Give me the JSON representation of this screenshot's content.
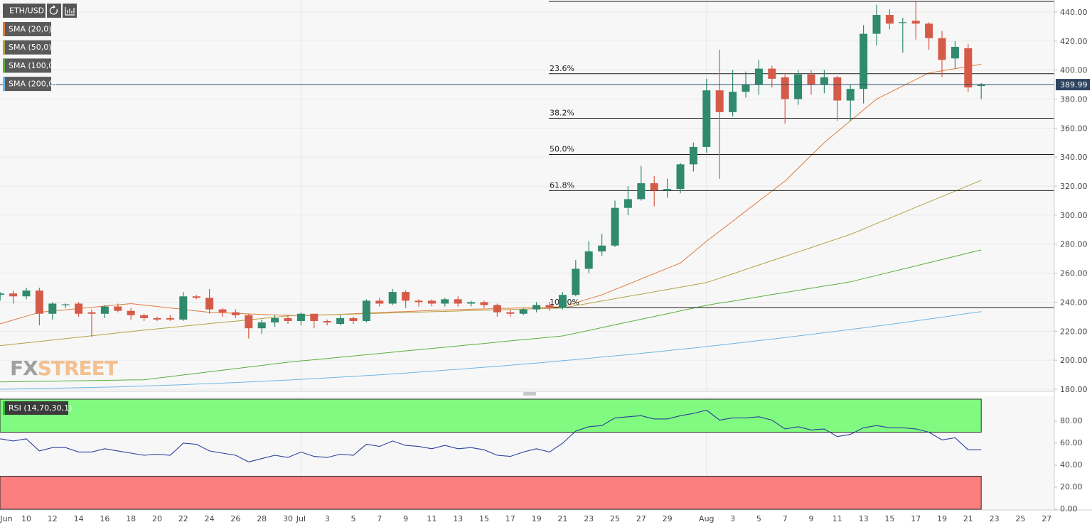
{
  "chart_data": [
    {
      "type": "candlestick",
      "title": "ETH/USD",
      "categories": [
        "Jun",
        null,
        "10",
        null,
        "12",
        null,
        "14",
        null,
        "16",
        null,
        "18",
        null,
        "20",
        null,
        "22",
        null,
        "24",
        null,
        "26",
        null,
        "28",
        null,
        "30",
        "Jul",
        null,
        "3",
        null,
        "5",
        null,
        "7",
        null,
        "9",
        null,
        "11",
        null,
        "13",
        null,
        "15",
        null,
        "17",
        null,
        "19",
        null,
        "21",
        null,
        "23",
        null,
        "25",
        null,
        "27",
        null,
        "29",
        null,
        null,
        "Aug",
        null,
        "3",
        null,
        "5",
        null,
        "7",
        null,
        "9",
        null,
        "11",
        null,
        "13",
        null,
        "15",
        null,
        "17",
        null,
        "19",
        null,
        "21",
        null,
        "23",
        null,
        "25",
        null,
        "27"
      ],
      "open": [
        245,
        246,
        244,
        248,
        232,
        238,
        239,
        233,
        232,
        237,
        234,
        231,
        229,
        229,
        228,
        244,
        243,
        235,
        233,
        231,
        222,
        226,
        229,
        227,
        232,
        227,
        225,
        229,
        227,
        241,
        239,
        247,
        241,
        241,
        239,
        242,
        239,
        240,
        238,
        233,
        232,
        235,
        238,
        236,
        245,
        263,
        275,
        279,
        305,
        311,
        322,
        317,
        318,
        335,
        347,
        386,
        371,
        385,
        390,
        401,
        395,
        380,
        397,
        390,
        395,
        379,
        387,
        425,
        438,
        433,
        434,
        432,
        422,
        408,
        415,
        389,
        null,
        null,
        null,
        null,
        null
      ],
      "high": [
        247,
        248,
        250,
        250,
        240,
        239,
        240,
        235,
        238,
        239,
        236,
        232,
        230,
        231,
        247,
        245,
        249,
        236,
        235,
        232,
        228,
        231,
        231,
        233,
        232,
        228,
        231,
        230,
        242,
        243,
        249,
        248,
        242,
        242,
        243,
        244,
        241,
        241,
        239,
        235,
        236,
        240,
        240,
        247,
        269,
        282,
        287,
        310,
        320,
        334,
        327,
        325,
        336,
        350,
        394,
        414,
        400,
        399,
        407,
        403,
        398,
        400,
        400,
        400,
        396,
        390,
        431,
        445,
        442,
        436,
        447,
        433,
        427,
        420,
        418,
        391,
        null,
        null,
        null,
        null,
        null
      ],
      "low": [
        241,
        239,
        242,
        224,
        228,
        236,
        230,
        216,
        229,
        233,
        228,
        227,
        227,
        227,
        227,
        242,
        232,
        230,
        229,
        215,
        218,
        223,
        225,
        224,
        222,
        224,
        224,
        225,
        226,
        237,
        238,
        236,
        237,
        237,
        237,
        237,
        237,
        236,
        230,
        230,
        231,
        233,
        234,
        235,
        244,
        260,
        272,
        278,
        300,
        310,
        306,
        312,
        315,
        330,
        343,
        325,
        368,
        381,
        383,
        388,
        363,
        376,
        383,
        384,
        365,
        365,
        377,
        417,
        428,
        412,
        421,
        414,
        395,
        401,
        385,
        380,
        null,
        null,
        null,
        null,
        null
      ],
      "close": [
        246,
        244,
        248,
        232,
        239,
        238.5,
        232,
        232,
        237,
        234,
        231,
        229,
        228,
        228,
        244,
        243,
        235,
        233,
        231,
        222,
        226,
        229,
        227,
        232,
        227,
        226,
        229,
        227,
        241,
        239,
        247,
        241,
        240,
        239,
        242,
        239,
        240,
        238,
        233,
        232,
        235,
        238,
        236,
        245,
        263,
        275,
        279,
        305,
        311,
        322,
        317,
        318,
        335,
        347,
        386,
        371,
        385,
        390,
        401,
        394,
        380,
        397,
        390,
        395,
        379,
        387,
        425,
        438,
        432,
        433,
        432,
        422,
        407,
        416,
        388,
        389.99,
        null,
        null,
        null,
        null,
        null
      ],
      "up_color": "#2f8a6e",
      "down_color": "#d65a48",
      "overlays": [
        {
          "name": "SMA (20,0)",
          "color": "#e07a3a",
          "values": [
            225,
            227.7,
            230.3,
            233,
            233.9,
            234.7,
            235.6,
            236.4,
            237.3,
            238.1,
            239,
            238,
            237,
            236,
            235,
            234,
            233,
            232.6,
            232.3,
            231.9,
            231.6,
            231.2,
            230.9,
            230.5,
            230.9,
            231.3,
            231.6,
            232,
            232.4,
            232.8,
            233.2,
            233.5,
            233.9,
            234.3,
            234.6,
            234.8,
            235.1,
            235.3,
            235.6,
            235.8,
            236.1,
            236.3,
            236.6,
            236.8,
            239.5,
            242.3,
            245,
            248.7,
            252.3,
            256,
            259.7,
            263.3,
            267,
            274.5,
            282,
            288.9,
            295.8,
            302.8,
            309.7,
            316.6,
            323.5,
            332.3,
            341.2,
            350,
            357.5,
            365,
            372.5,
            380,
            384.5,
            389,
            393.5,
            398,
            399.5,
            401,
            402.5,
            404,
            null,
            null,
            null,
            null,
            null
          ]
        },
        {
          "name": "SMA (50,0)",
          "color": "#b3a244",
          "values": [
            210,
            211,
            211.9,
            212.9,
            213.9,
            214.9,
            215.8,
            216.8,
            217.8,
            218.8,
            219.7,
            220.7,
            221.6,
            222.5,
            223.4,
            224.3,
            225.2,
            226.1,
            226.9,
            227.8,
            228.7,
            229.6,
            230.5,
            230.8,
            231,
            231.3,
            231.5,
            231.8,
            232.1,
            232.3,
            232.6,
            232.9,
            233.1,
            233.4,
            233.6,
            233.9,
            234.2,
            234.4,
            234.7,
            234.9,
            235.2,
            235.5,
            235.7,
            236,
            237.6,
            239.2,
            240.8,
            242.4,
            244,
            245.5,
            247.1,
            248.7,
            250.3,
            251.9,
            253.5,
            256.5,
            259.5,
            262.6,
            265.6,
            268.6,
            271.6,
            274.6,
            277.6,
            280.7,
            283.7,
            286.7,
            290.4,
            294.2,
            297.9,
            301.6,
            305.4,
            309.1,
            312.8,
            316.5,
            320.3,
            324,
            null,
            null,
            null,
            null,
            null
          ]
        },
        {
          "name": "SMA (100,0)",
          "color": "#5aae3c",
          "values": [
            185,
            185.1,
            185.3,
            185.4,
            185.5,
            185.7,
            185.8,
            186,
            186.1,
            186.2,
            186.4,
            186.5,
            187.6,
            188.7,
            189.8,
            190.9,
            192,
            193.1,
            194.2,
            195.3,
            196.4,
            197.5,
            198.6,
            199.5,
            200.3,
            201.2,
            202,
            202.9,
            203.8,
            204.6,
            205.5,
            206.4,
            207.2,
            208.1,
            208.9,
            209.8,
            210.7,
            211.5,
            212.4,
            213.3,
            214.1,
            215,
            215.8,
            216.7,
            218.6,
            220.5,
            222.5,
            224.4,
            226.3,
            228.2,
            230.1,
            232,
            234,
            235.9,
            237.8,
            239.3,
            240.7,
            242.2,
            243.7,
            245.2,
            246.6,
            248.1,
            249.6,
            251.1,
            252.5,
            254,
            256.2,
            258.4,
            260.6,
            262.8,
            265,
            267.2,
            269.4,
            271.6,
            273.8,
            276,
            null,
            null,
            null,
            null,
            null
          ]
        },
        {
          "name": "SMA (200,0)",
          "color": "#6db5e6",
          "values": [
            180,
            180.1,
            180.3,
            180.4,
            180.6,
            180.8,
            181,
            181.2,
            181.4,
            181.6,
            181.9,
            182.2,
            182.5,
            182.8,
            183.1,
            183.5,
            183.8,
            184.2,
            184.6,
            185,
            185.4,
            185.9,
            186.3,
            186.8,
            187.3,
            187.8,
            188.3,
            188.8,
            189.4,
            189.9,
            190.5,
            191.1,
            191.8,
            192.4,
            193.1,
            193.7,
            194.4,
            195.1,
            195.8,
            196.5,
            197.3,
            198,
            198.8,
            199.6,
            200.4,
            201.3,
            202.1,
            203,
            203.8,
            204.7,
            205.6,
            206.5,
            207.5,
            208.4,
            209.4,
            210.4,
            211.4,
            212.4,
            213.5,
            214.5,
            215.6,
            216.7,
            217.8,
            218.9,
            220,
            221.2,
            222.3,
            223.5,
            224.7,
            225.9,
            227.1,
            228.4,
            229.6,
            230.9,
            232.2,
            233.5,
            null,
            null,
            null,
            null,
            null
          ]
        }
      ],
      "levels": [
        {
          "value": 447.3
        },
        {
          "value": 397.5,
          "label": "23.6%"
        },
        {
          "value": 366.8,
          "label": "38.2%"
        },
        {
          "value": 341.8,
          "label": "50.0%"
        },
        {
          "value": 316.9,
          "label": "61.8%"
        },
        {
          "value": 236.3,
          "label": "100.0%"
        }
      ],
      "last_price": 389.99,
      "ylim": [
        179,
        448.3
      ],
      "yticks": [
        {
          "value": 180,
          "label": "180.00"
        },
        {
          "value": 200,
          "label": "200.00"
        },
        {
          "value": 220,
          "label": "220.00"
        },
        {
          "value": 240,
          "label": "240.00"
        },
        {
          "value": 260,
          "label": "260.00"
        },
        {
          "value": 280,
          "label": "280.00"
        },
        {
          "value": 300,
          "label": "300.00"
        },
        {
          "value": 320,
          "label": "320.00"
        },
        {
          "value": 340,
          "label": "340.00"
        },
        {
          "value": 360,
          "label": "360.00"
        },
        {
          "value": 380,
          "label": "380.00"
        },
        {
          "value": 400,
          "label": "400.00"
        },
        {
          "value": 420,
          "label": "420.00"
        },
        {
          "value": 440,
          "label": "440.00"
        }
      ],
      "grid": true,
      "watermark": [
        "FX",
        "STREET"
      ]
    },
    {
      "type": "line",
      "title": "RSI (14,70,30,1)",
      "color": "#2b3f9c",
      "values": [
        64,
        62,
        64,
        53,
        56,
        56,
        52,
        52,
        55,
        53,
        51,
        49,
        50,
        49,
        60,
        59,
        53,
        51,
        49,
        43,
        46,
        49,
        47,
        52,
        48,
        47,
        50,
        49,
        59,
        57,
        62,
        58,
        57,
        55,
        58,
        55,
        56,
        54,
        49,
        48,
        52,
        55,
        52,
        60,
        71,
        75,
        76,
        83,
        84,
        85,
        82,
        82,
        85,
        87,
        90,
        81,
        83,
        83,
        84,
        81,
        73,
        75,
        72,
        73,
        66,
        68,
        74,
        76,
        74,
        74,
        73,
        70,
        63,
        65,
        54,
        54,
        null,
        null,
        null,
        null,
        null
      ],
      "bands": [
        {
          "from": 70,
          "to": 100,
          "color": "#80fa80"
        },
        {
          "from": 0,
          "to": 30,
          "color": "#fb7f7f"
        }
      ],
      "ylim": [
        0,
        100
      ],
      "yticks": [
        {
          "value": 0,
          "label": "0.00"
        },
        {
          "value": 20,
          "label": "20.00"
        },
        {
          "value": 40,
          "label": "40.00"
        },
        {
          "value": 60,
          "label": "60.00"
        },
        {
          "value": 80,
          "label": "80.00"
        }
      ]
    }
  ]
}
